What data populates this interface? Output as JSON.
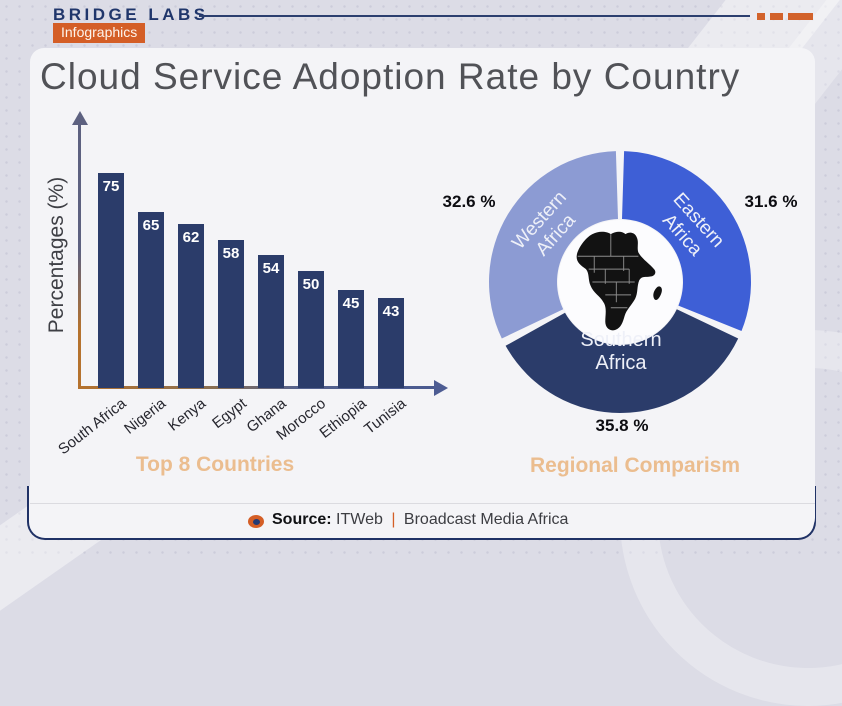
{
  "header": {
    "brand": "BRIDGE LABS",
    "badge": "Infographics"
  },
  "title": "Cloud Service Adoption Rate by Country",
  "chart_data": [
    {
      "type": "bar",
      "title": "Top 8 Countries",
      "ylabel": "Percentages (%)",
      "xlabel": "",
      "categories": [
        "South Africa",
        "Nigeria",
        "Kenya",
        "Egypt",
        "Ghana",
        "Morocco",
        "Ethiopia",
        "Tunisia"
      ],
      "values": [
        75,
        65,
        62,
        58,
        54,
        50,
        45,
        43
      ],
      "bar_color": "#2b3c6a",
      "value_label_position": "inside-top",
      "grid": false
    },
    {
      "type": "pie",
      "subtype": "donut",
      "title": "Regional Comparism",
      "start_angle_deg": 0,
      "center_icon": "africa-map",
      "slices": [
        {
          "label": "Eastern Africa",
          "value": 31.6,
          "pct_label": "31.6 %",
          "color": "#3e5fd6"
        },
        {
          "label": "Southern Africa",
          "value": 35.8,
          "pct_label": "35.8 %",
          "color": "#2b3c6a"
        },
        {
          "label": "Western Africa",
          "value": 32.6,
          "pct_label": "32.6 %",
          "color": "#8c9bd3"
        }
      ]
    }
  ],
  "footer": {
    "source_label": "Source:",
    "source_name": "ITWeb",
    "separator": "|",
    "source_publisher": "Broadcast Media Africa"
  },
  "colors": {
    "accent_orange": "#d45e26",
    "navy": "#2b3c6a",
    "royal_blue": "#3e5fd6",
    "light_blue": "#8c9bd3",
    "tan_caption": "#ebbd8f",
    "title_gray": "#515257",
    "background": "#dcdce6",
    "card": "#f4f4f7"
  }
}
